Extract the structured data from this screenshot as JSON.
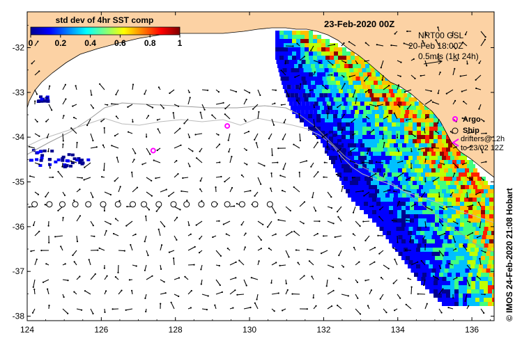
{
  "map": {
    "date_title": "23-Feb-2020 00Z",
    "colorbar": {
      "title": "std dev of 4hr SST comp",
      "ticks": [
        "0",
        "0.2",
        "0.4",
        "0.6",
        "0.8",
        "1"
      ],
      "colormap": "jet"
    },
    "info": {
      "line1": "NRT00 GSL",
      "line2": "20-Feb 18:00Z",
      "line3": "0.5m/s (1kt 24h)"
    },
    "legend": {
      "argo_label": "Argo",
      "ship_label": "Ship",
      "drifters_line1": "drifters@12h",
      "drifters_line2": "to 23/02 12Z",
      "argo_color": "#ff00ff",
      "drifter_color": "#ff00ff"
    },
    "credit": "© IMOS 24-Feb-2020 21:08 Hobart",
    "colors": {
      "land": "#fcd2a4",
      "ocean": "#ffffff"
    }
  },
  "chart_data": {
    "type": "map",
    "x_ticks": [
      124,
      126,
      128,
      130,
      132,
      134,
      136
    ],
    "y_ticks": [
      -32,
      -33,
      -34,
      -35,
      -36,
      -37,
      -38
    ],
    "xlim": [
      124,
      136.6
    ],
    "ylim": [
      -38.1,
      -31.2
    ],
    "argo_floats": [
      [
        127.4,
        -34.3
      ],
      [
        129.4,
        -33.75
      ]
    ],
    "ship_track": [
      [
        124.2,
        -35.5
      ],
      [
        124.6,
        -35.5
      ],
      [
        124.95,
        -35.5
      ],
      [
        125.3,
        -35.5
      ],
      [
        125.65,
        -35.5
      ],
      [
        126.05,
        -35.5
      ],
      [
        126.45,
        -35.5
      ],
      [
        126.85,
        -35.5
      ],
      [
        127.15,
        -35.5
      ],
      [
        127.55,
        -35.5
      ],
      [
        127.95,
        -35.5
      ],
      [
        128.3,
        -35.5
      ],
      [
        128.7,
        -35.5
      ],
      [
        129.05,
        -35.5
      ],
      [
        129.4,
        -35.5
      ],
      [
        129.8,
        -35.5
      ],
      [
        130.15,
        -35.5
      ],
      [
        130.55,
        -35.5
      ]
    ]
  }
}
